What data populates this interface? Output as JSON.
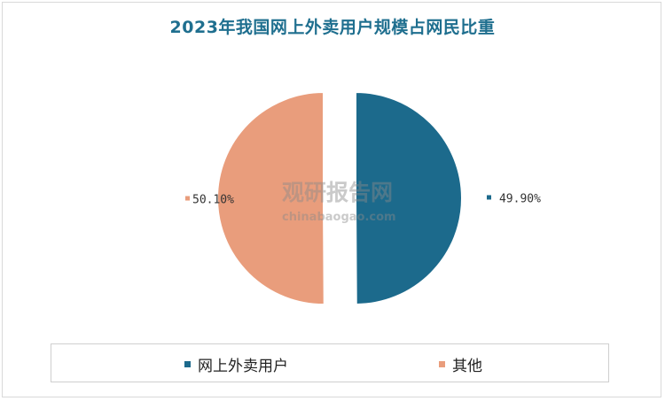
{
  "chart_data": {
    "type": "pie",
    "title": "2023年我国网上外卖用户规模占网民比重",
    "series": [
      {
        "name": "网上外卖用户",
        "value": 49.9,
        "label": "49.90%",
        "color": "#1c6a8c"
      },
      {
        "name": "其他",
        "value": 50.1,
        "label": "50.10%",
        "color": "#e99d7c"
      }
    ],
    "legend_position": "bottom"
  },
  "watermark": {
    "title": "观研报告网",
    "url": "chinabaogao.com"
  }
}
